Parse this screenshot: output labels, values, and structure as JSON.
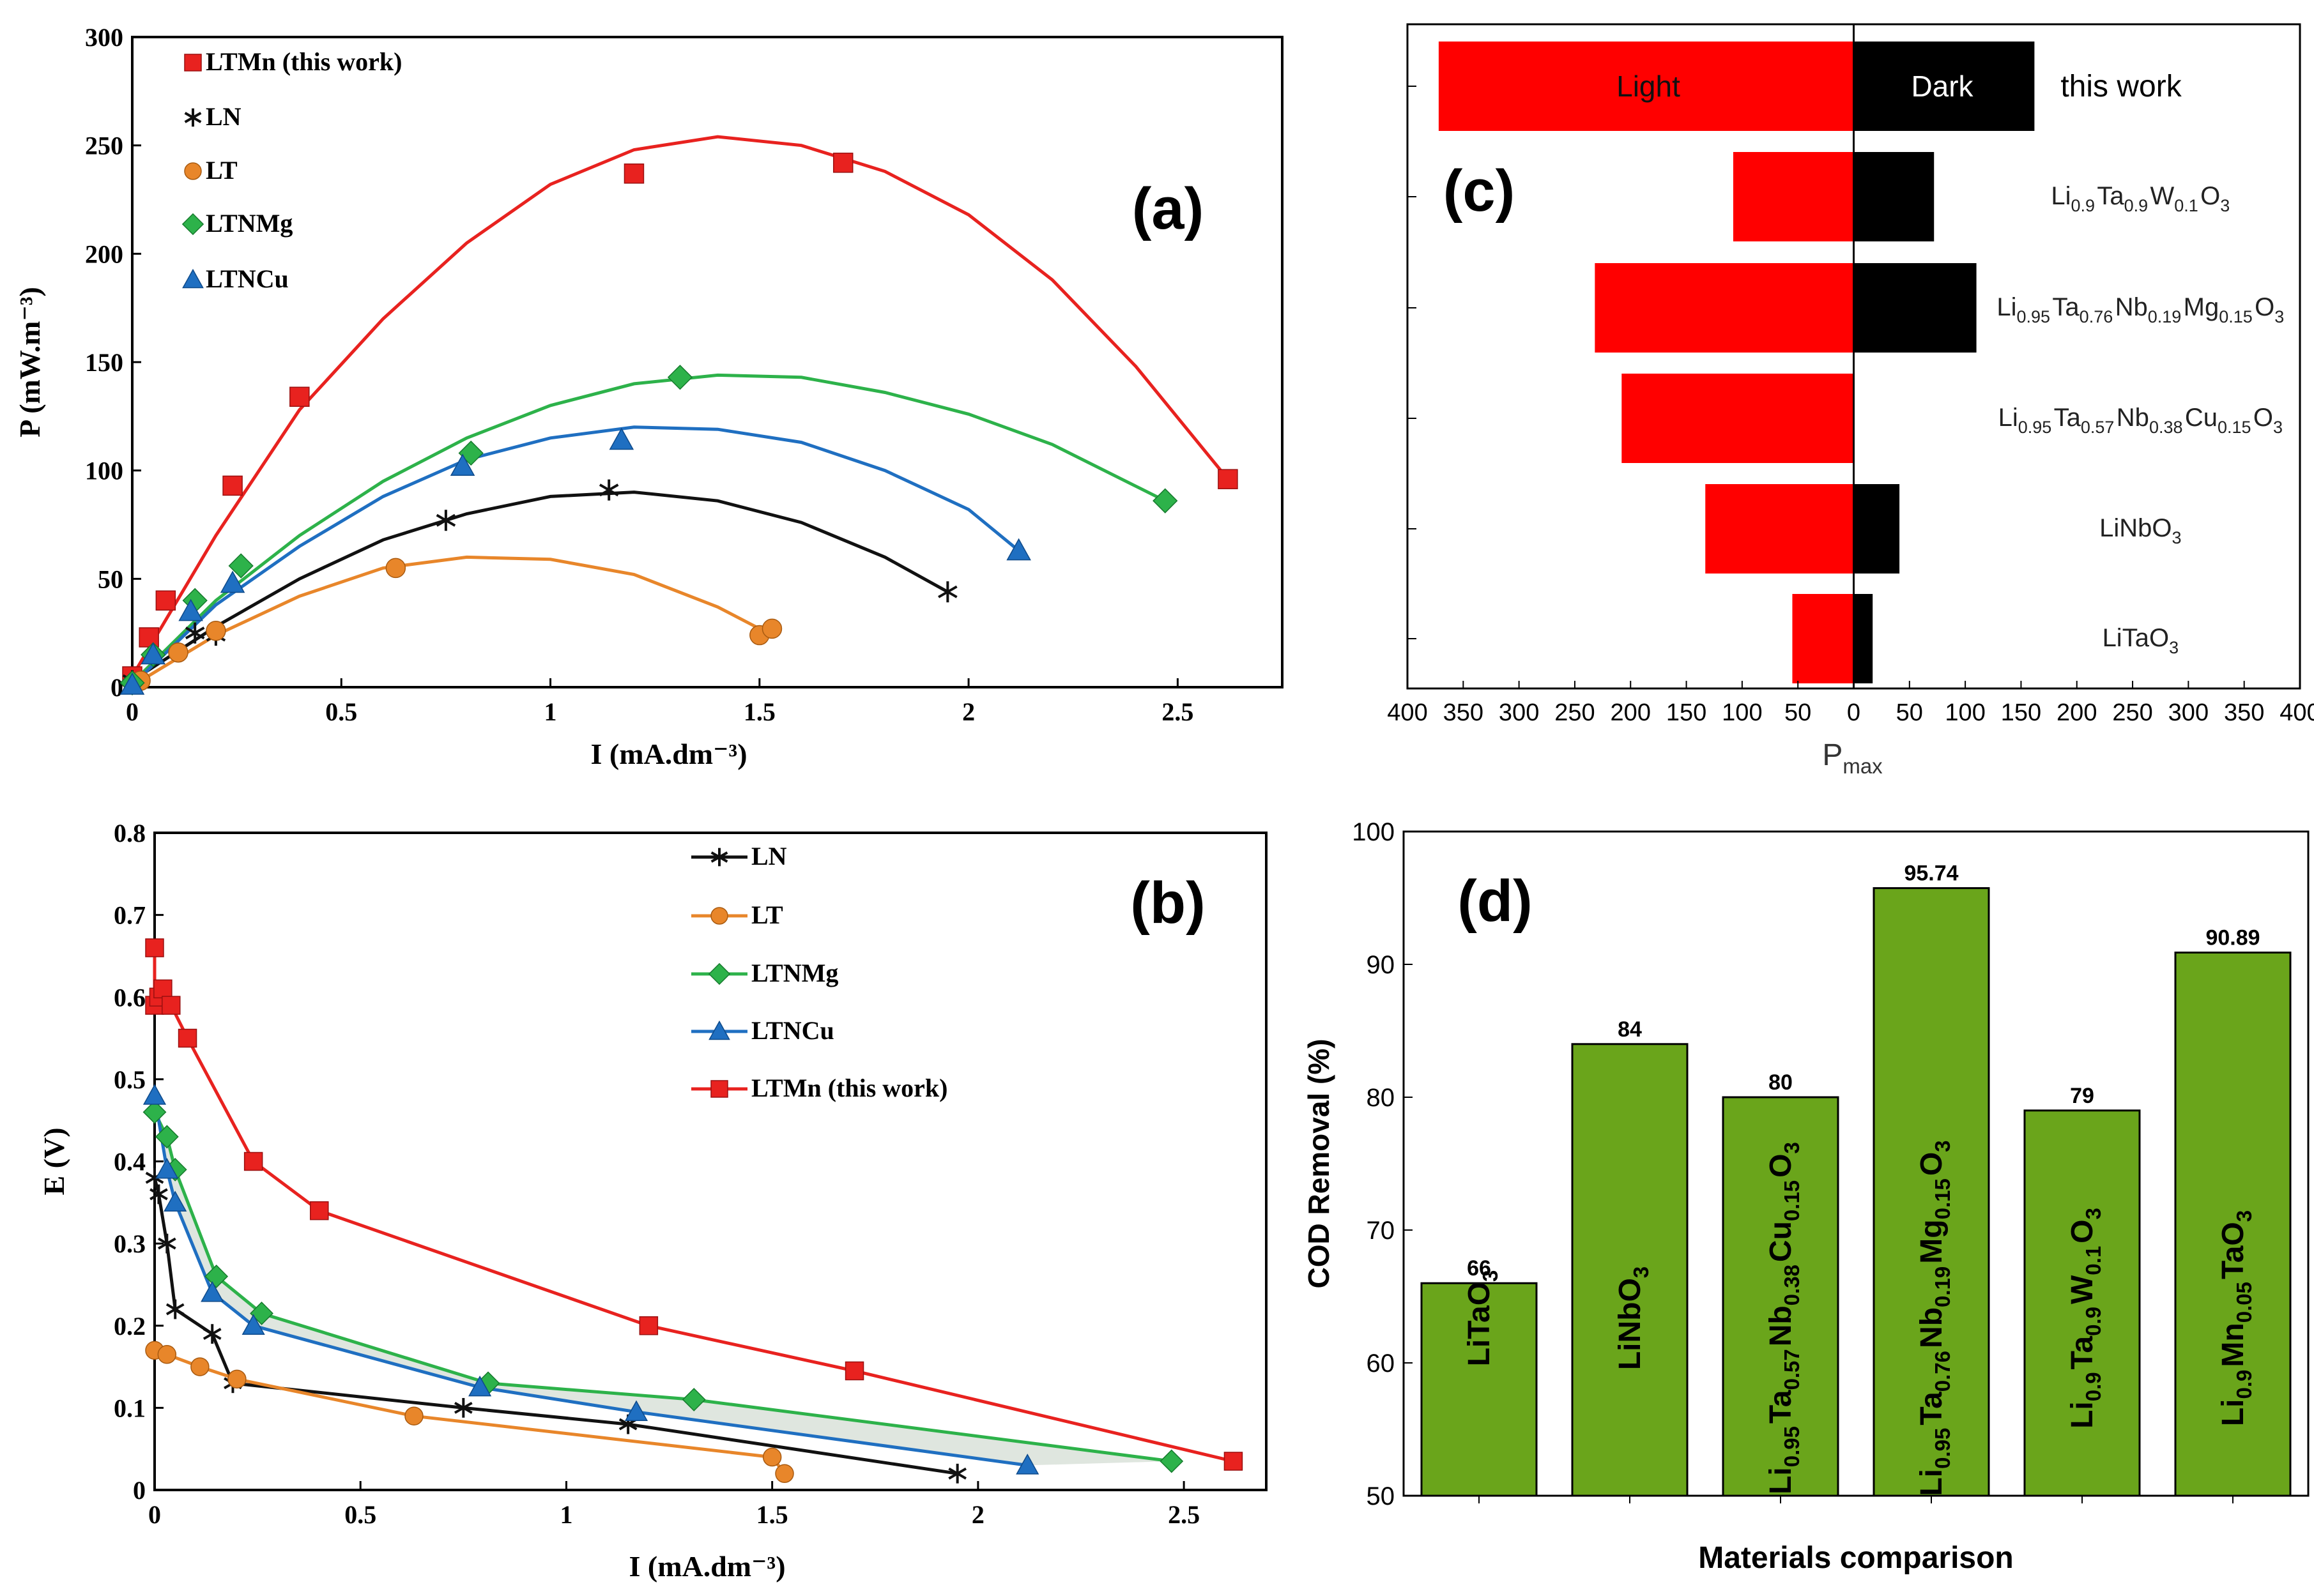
{
  "chart_data": [
    {
      "id": "a",
      "type": "scatter",
      "panel_label": "(a)",
      "xlabel": "I (mA.dm⁻³)",
      "ylabel": "P (mW.m⁻³)",
      "xlim": [
        0,
        2.75
      ],
      "ylim": [
        0,
        300
      ],
      "xticks": [
        "0",
        "0.5",
        "1",
        "1.5",
        "2",
        "2.5"
      ],
      "yticks": [
        "0",
        "50",
        "100",
        "150",
        "200",
        "250",
        "300"
      ],
      "legend": [
        "LTMn (this work)",
        "LN",
        "LT",
        "LTNMg",
        "LTNCu"
      ],
      "series": [
        {
          "name": "LTMn (this work)",
          "color": "#e8221f",
          "marker": "square",
          "points": [
            [
              0,
              5
            ],
            [
              0.04,
              23
            ],
            [
              0.08,
              40
            ],
            [
              0.24,
              93
            ],
            [
              0.4,
              134
            ],
            [
              1.2,
              237
            ],
            [
              1.7,
              242
            ],
            [
              2.62,
              96
            ]
          ],
          "fit": [
            [
              0,
              5
            ],
            [
              0.2,
              70
            ],
            [
              0.4,
              128
            ],
            [
              0.6,
              170
            ],
            [
              0.8,
              205
            ],
            [
              1.0,
              232
            ],
            [
              1.2,
              248
            ],
            [
              1.4,
              254
            ],
            [
              1.6,
              250
            ],
            [
              1.8,
              238
            ],
            [
              2.0,
              218
            ],
            [
              2.2,
              188
            ],
            [
              2.4,
              148
            ],
            [
              2.62,
              96
            ]
          ]
        },
        {
          "name": "LN",
          "color": "#111111",
          "marker": "star",
          "points": [
            [
              0,
              3
            ],
            [
              0.15,
              25
            ],
            [
              0.2,
              24
            ],
            [
              0.75,
              77
            ],
            [
              1.14,
              91
            ],
            [
              1.95,
              44
            ]
          ],
          "fit": [
            [
              0,
              3
            ],
            [
              0.2,
              28
            ],
            [
              0.4,
              50
            ],
            [
              0.6,
              68
            ],
            [
              0.8,
              80
            ],
            [
              1.0,
              88
            ],
            [
              1.2,
              90
            ],
            [
              1.4,
              86
            ],
            [
              1.6,
              76
            ],
            [
              1.8,
              60
            ],
            [
              1.95,
              44
            ]
          ]
        },
        {
          "name": "LT",
          "color": "#e8862a",
          "marker": "circle",
          "points": [
            [
              0.02,
              3
            ],
            [
              0.11,
              16
            ],
            [
              0.2,
              26
            ],
            [
              0.63,
              55
            ],
            [
              1.5,
              24
            ],
            [
              1.53,
              27
            ]
          ],
          "fit": [
            [
              0.02,
              3
            ],
            [
              0.2,
              24
            ],
            [
              0.4,
              42
            ],
            [
              0.6,
              55
            ],
            [
              0.8,
              60
            ],
            [
              1.0,
              59
            ],
            [
              1.2,
              52
            ],
            [
              1.4,
              37
            ],
            [
              1.52,
              25
            ]
          ]
        },
        {
          "name": "LTNMg",
          "color": "#2db24a",
          "marker": "diamond",
          "points": [
            [
              0,
              2
            ],
            [
              0.05,
              15
            ],
            [
              0.15,
              40
            ],
            [
              0.26,
              56
            ],
            [
              0.81,
              108
            ],
            [
              1.31,
              143
            ],
            [
              2.47,
              86
            ]
          ],
          "fit": [
            [
              0,
              2
            ],
            [
              0.2,
              40
            ],
            [
              0.4,
              70
            ],
            [
              0.6,
              95
            ],
            [
              0.8,
              115
            ],
            [
              1.0,
              130
            ],
            [
              1.2,
              140
            ],
            [
              1.4,
              144
            ],
            [
              1.6,
              143
            ],
            [
              1.8,
              136
            ],
            [
              2.0,
              126
            ],
            [
              2.2,
              112
            ],
            [
              2.47,
              86
            ]
          ]
        },
        {
          "name": "LTNCu",
          "color": "#1f6fc1",
          "marker": "triangle",
          "points": [
            [
              0,
              1
            ],
            [
              0.05,
              15
            ],
            [
              0.14,
              35
            ],
            [
              0.24,
              48
            ],
            [
              0.79,
              102
            ],
            [
              1.17,
              114
            ],
            [
              2.12,
              63
            ]
          ],
          "fit": [
            [
              0,
              1
            ],
            [
              0.2,
              38
            ],
            [
              0.4,
              65
            ],
            [
              0.6,
              88
            ],
            [
              0.8,
              105
            ],
            [
              1.0,
              115
            ],
            [
              1.2,
              120
            ],
            [
              1.4,
              119
            ],
            [
              1.6,
              113
            ],
            [
              1.8,
              100
            ],
            [
              2.0,
              82
            ],
            [
              2.12,
              63
            ]
          ]
        }
      ]
    },
    {
      "id": "b",
      "type": "line",
      "panel_label": "(b)",
      "xlabel": "I (mA.dm⁻³)",
      "ylabel": "E (V)",
      "xlim": [
        0,
        2.7
      ],
      "ylim": [
        0,
        0.8
      ],
      "xticks": [
        "0",
        "0.5",
        "1",
        "1.5",
        "2",
        "2.5"
      ],
      "yticks": [
        "0",
        "0.1",
        "0.2",
        "0.3",
        "0.4",
        "0.5",
        "0.6",
        "0.7",
        "0.8"
      ],
      "legend": [
        "LN",
        "LT",
        "LTNMg",
        "LTNCu",
        "LTMn (this work)"
      ],
      "series": [
        {
          "name": "LN",
          "color": "#111111",
          "marker": "star",
          "points": [
            [
              0,
              0.38
            ],
            [
              0.01,
              0.36
            ],
            [
              0.03,
              0.3
            ],
            [
              0.05,
              0.22
            ],
            [
              0.14,
              0.19
            ],
            [
              0.19,
              0.13
            ],
            [
              0.75,
              0.1
            ],
            [
              1.15,
              0.08
            ],
            [
              1.95,
              0.02
            ]
          ]
        },
        {
          "name": "LT",
          "color": "#e8862a",
          "marker": "circle",
          "points": [
            [
              0,
              0.17
            ],
            [
              0.03,
              0.165
            ],
            [
              0.11,
              0.15
            ],
            [
              0.2,
              0.135
            ],
            [
              0.63,
              0.09
            ],
            [
              1.5,
              0.04
            ],
            [
              1.53,
              0.02
            ]
          ]
        },
        {
          "name": "LTNMg",
          "color": "#2db24a",
          "marker": "diamond",
          "points": [
            [
              0,
              0.46
            ],
            [
              0.03,
              0.43
            ],
            [
              0.05,
              0.39
            ],
            [
              0.15,
              0.26
            ],
            [
              0.26,
              0.215
            ],
            [
              0.81,
              0.13
            ],
            [
              1.31,
              0.11
            ],
            [
              2.47,
              0.035
            ]
          ]
        },
        {
          "name": "LTNCu",
          "color": "#1f6fc1",
          "marker": "triangle",
          "points": [
            [
              0,
              0.48
            ],
            [
              0.03,
              0.39
            ],
            [
              0.05,
              0.35
            ],
            [
              0.14,
              0.24
            ],
            [
              0.24,
              0.2
            ],
            [
              0.79,
              0.125
            ],
            [
              1.17,
              0.095
            ],
            [
              2.12,
              0.03
            ]
          ]
        },
        {
          "name": "LTMn (this work)",
          "color": "#e8221f",
          "marker": "square",
          "points": [
            [
              0,
              0.66
            ],
            [
              0,
              0.59
            ],
            [
              0.01,
              0.6
            ],
            [
              0.02,
              0.61
            ],
            [
              0.04,
              0.59
            ],
            [
              0.08,
              0.55
            ],
            [
              0.24,
              0.4
            ],
            [
              0.4,
              0.34
            ],
            [
              1.2,
              0.2
            ],
            [
              1.7,
              0.145
            ],
            [
              2.62,
              0.035
            ]
          ]
        }
      ]
    },
    {
      "id": "c",
      "type": "bar",
      "orientation": "horizontal",
      "panel_label": "(c)",
      "xlabel": "P",
      "xlabel_sub": "max",
      "xlim": [
        -400,
        400
      ],
      "xticks": [
        "400",
        "350",
        "300",
        "250",
        "200",
        "150",
        "100",
        "50",
        "0",
        "50",
        "100",
        "150",
        "200",
        "250",
        "300",
        "350",
        "400"
      ],
      "inbar_labels": {
        "light": "Light",
        "dark": "Dark"
      },
      "legend": [
        "Light",
        "Dark"
      ],
      "categories": [
        {
          "base": "this work",
          "parts": []
        },
        {
          "base": "",
          "parts": [
            [
              "Li",
              "0.9"
            ],
            [
              "Ta",
              "0.9"
            ],
            [
              "W",
              "0.1"
            ],
            [
              "O",
              "3"
            ]
          ]
        },
        {
          "base": "",
          "parts": [
            [
              "Li",
              "0.95"
            ],
            [
              "Ta",
              "0.76"
            ],
            [
              "Nb",
              "0.19"
            ],
            [
              "Mg",
              "0.15"
            ],
            [
              "O",
              "3"
            ]
          ]
        },
        {
          "base": "",
          "parts": [
            [
              "Li",
              "0.95"
            ],
            [
              "Ta",
              "0.57"
            ],
            [
              "Nb",
              "0.38"
            ],
            [
              "Cu",
              "0.15"
            ],
            [
              "O",
              "3"
            ]
          ]
        },
        {
          "base": "",
          "parts": [
            [
              "LiNbO",
              "3"
            ]
          ]
        },
        {
          "base": "",
          "parts": [
            [
              "LiTaO",
              "3"
            ]
          ]
        }
      ],
      "series": [
        {
          "name": "Light",
          "color": "#ff0000",
          "values": [
            372,
            108,
            232,
            208,
            133,
            55
          ]
        },
        {
          "name": "Dark",
          "color": "#000000",
          "values": [
            162,
            72,
            110,
            0,
            41,
            17
          ]
        }
      ]
    },
    {
      "id": "d",
      "type": "bar",
      "panel_label": "(d)",
      "xlabel": "Materials comparison",
      "ylabel": "COD Removal (%)",
      "ylim": [
        50,
        100
      ],
      "yticks": [
        "50",
        "60",
        "70",
        "80",
        "90",
        "100"
      ],
      "color": "#6aa51b",
      "categories": [
        [
          [
            "LiTaO",
            "3"
          ]
        ],
        [
          [
            "LiNbO",
            "3"
          ]
        ],
        [
          [
            "Li",
            "0.95"
          ],
          [
            "Ta",
            "0.57"
          ],
          [
            "Nb",
            "0.38"
          ],
          [
            "Cu",
            "0.15"
          ],
          [
            "O",
            "3"
          ]
        ],
        [
          [
            "Li",
            "0.95"
          ],
          [
            "Ta",
            "0.76"
          ],
          [
            "Nb",
            "0.19"
          ],
          [
            "Mg",
            "0.15"
          ],
          [
            "O",
            "3"
          ]
        ],
        [
          [
            "Li",
            "0.9"
          ],
          [
            "Ta",
            "0.9"
          ],
          [
            "W",
            "0.1"
          ],
          [
            "O",
            "3"
          ]
        ],
        [
          [
            "Li",
            "0.9"
          ],
          [
            "Mn",
            "0.05"
          ],
          [
            "TaO",
            "3"
          ]
        ]
      ],
      "values": [
        66,
        84,
        80,
        95.74,
        79,
        90.89
      ],
      "value_labels": [
        "66",
        "84",
        "80",
        "95.74",
        "79",
        "90.89"
      ]
    }
  ]
}
